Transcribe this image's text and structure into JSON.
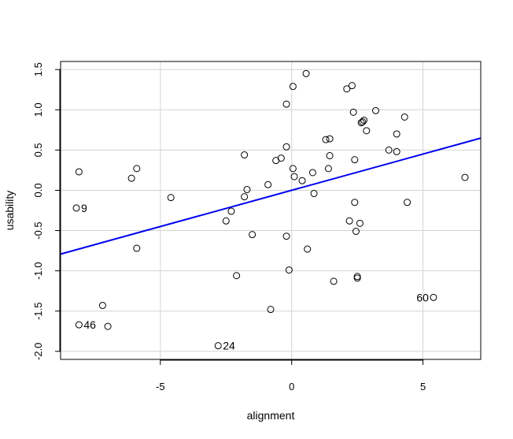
{
  "chart_data": {
    "type": "scatter",
    "xlabel": "alignment",
    "ylabel": "usability",
    "xlim": [
      -8.8,
      7.2
    ],
    "ylim": [
      -2.1,
      1.6
    ],
    "xticks": [
      -5,
      0,
      5
    ],
    "xtick_labels": [
      "-5",
      "0",
      "5"
    ],
    "yticks": [
      -2.0,
      -1.5,
      -1.0,
      -0.5,
      0.0,
      0.5,
      1.0,
      1.5
    ],
    "ytick_labels": [
      "-2.0",
      "-1.5",
      "-1.0",
      "-0.5",
      "0.0",
      "0.5",
      "1.0",
      "1.5"
    ],
    "grid": true,
    "colors": {
      "points": "#000000",
      "fit_line": "#0000ee",
      "grid": "#d3d3d3"
    },
    "fit_line": {
      "intercept": 0.0,
      "slope": 0.09
    },
    "points": [
      {
        "x": -8.1,
        "y": 0.23
      },
      {
        "x": -8.2,
        "y": -0.22,
        "label": "9"
      },
      {
        "x": -5.9,
        "y": 0.27
      },
      {
        "x": -6.1,
        "y": 0.15
      },
      {
        "x": -5.9,
        "y": -0.72
      },
      {
        "x": -4.6,
        "y": -0.09
      },
      {
        "x": -7.2,
        "y": -1.43
      },
      {
        "x": -8.1,
        "y": -1.67,
        "label": "46"
      },
      {
        "x": -7.0,
        "y": -1.69
      },
      {
        "x": -2.8,
        "y": -1.93,
        "label": "24"
      },
      {
        "x": -2.1,
        "y": -1.06
      },
      {
        "x": -2.5,
        "y": -0.38
      },
      {
        "x": -2.3,
        "y": -0.26
      },
      {
        "x": -1.8,
        "y": 0.44
      },
      {
        "x": -1.8,
        "y": -0.08
      },
      {
        "x": -1.7,
        "y": 0.01
      },
      {
        "x": -1.5,
        "y": -0.55
      },
      {
        "x": -0.9,
        "y": 0.07
      },
      {
        "x": -0.8,
        "y": -1.48
      },
      {
        "x": -0.6,
        "y": 0.37
      },
      {
        "x": -0.4,
        "y": 0.4
      },
      {
        "x": -0.2,
        "y": 0.54
      },
      {
        "x": -0.2,
        "y": 1.07
      },
      {
        "x": -0.2,
        "y": -0.57
      },
      {
        "x": -0.1,
        "y": -0.99
      },
      {
        "x": 0.05,
        "y": 0.27
      },
      {
        "x": 0.1,
        "y": 0.17
      },
      {
        "x": 0.05,
        "y": 1.29
      },
      {
        "x": 0.4,
        "y": 0.12
      },
      {
        "x": 0.55,
        "y": 1.45
      },
      {
        "x": 0.6,
        "y": -0.73
      },
      {
        "x": 0.8,
        "y": 0.22
      },
      {
        "x": 0.85,
        "y": -0.04
      },
      {
        "x": 1.3,
        "y": 0.63
      },
      {
        "x": 1.45,
        "y": 0.64
      },
      {
        "x": 1.4,
        "y": 0.27
      },
      {
        "x": 1.45,
        "y": 0.43
      },
      {
        "x": 1.6,
        "y": -1.13
      },
      {
        "x": 2.1,
        "y": 1.26
      },
      {
        "x": 2.3,
        "y": 1.3
      },
      {
        "x": 2.35,
        "y": 0.97
      },
      {
        "x": 2.2,
        "y": -0.38
      },
      {
        "x": 2.4,
        "y": -0.15
      },
      {
        "x": 2.4,
        "y": 0.38
      },
      {
        "x": 2.45,
        "y": -0.51
      },
      {
        "x": 2.5,
        "y": -1.07
      },
      {
        "x": 2.5,
        "y": -1.09
      },
      {
        "x": 2.6,
        "y": -0.41
      },
      {
        "x": 2.65,
        "y": 0.84
      },
      {
        "x": 2.7,
        "y": 0.85
      },
      {
        "x": 2.75,
        "y": 0.87
      },
      {
        "x": 2.85,
        "y": 0.74
      },
      {
        "x": 3.2,
        "y": 0.99
      },
      {
        "x": 3.7,
        "y": 0.5
      },
      {
        "x": 4.0,
        "y": 0.7
      },
      {
        "x": 4.0,
        "y": 0.48
      },
      {
        "x": 4.3,
        "y": 0.91
      },
      {
        "x": 4.4,
        "y": -0.15
      },
      {
        "x": 5.4,
        "y": -1.33,
        "label": "60"
      },
      {
        "x": 6.6,
        "y": 0.16
      }
    ]
  }
}
